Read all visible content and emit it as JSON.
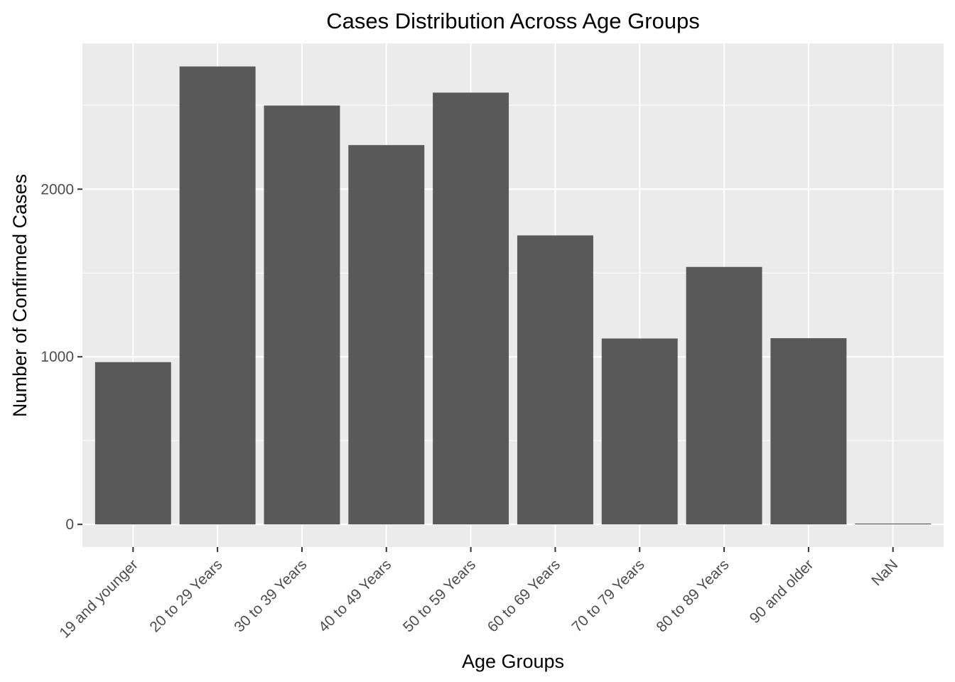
{
  "chart_data": {
    "type": "bar",
    "title": "Cases Distribution Across Age Groups",
    "xlabel": "Age Groups",
    "ylabel": "Number of Confirmed Cases",
    "categories": [
      "19 and younger",
      "20 to 29 Years",
      "30 to 39 Years",
      "40 to 49 Years",
      "50 to 59 Years",
      "60 to 69 Years",
      "70 to 79 Years",
      "80 to 89 Years",
      "90 and older",
      "NaN"
    ],
    "values": [
      968,
      2732,
      2499,
      2263,
      2576,
      1724,
      1109,
      1536,
      1111,
      5
    ],
    "ylim": [
      -135,
      2870
    ],
    "yticks": [
      0,
      1000,
      2000
    ],
    "grid": true,
    "legend": "none",
    "colors": {
      "bar": "#595959",
      "panel_background": "#ebebeb",
      "grid": "#ffffff",
      "axis_ticks": "#333333",
      "tick_text": "#4d4d4d"
    }
  }
}
